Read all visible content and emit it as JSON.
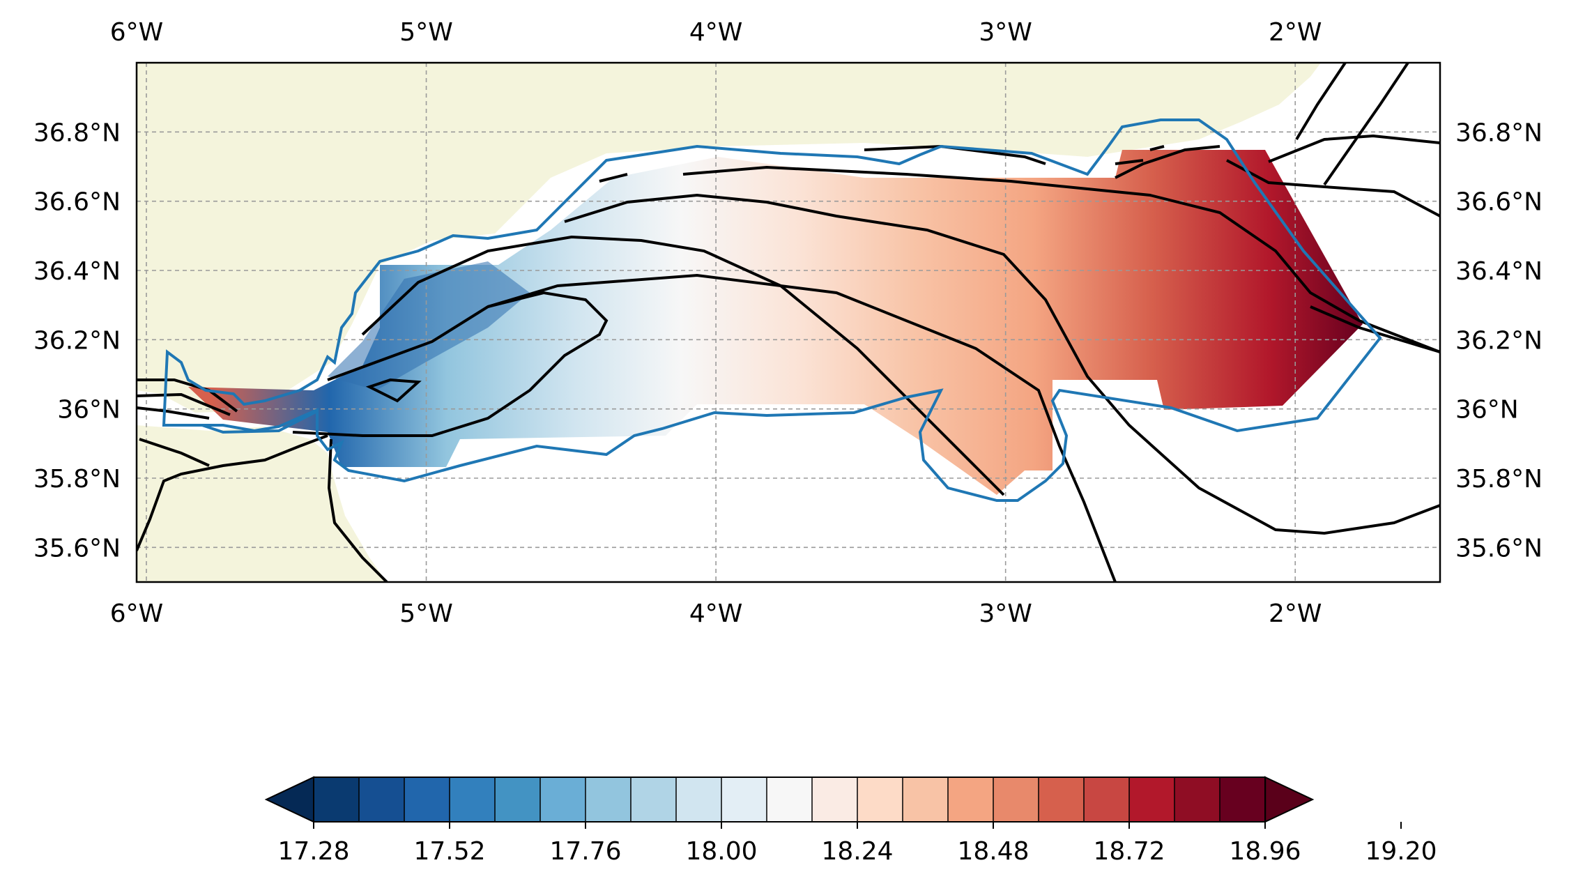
{
  "map": {
    "lon_labels_top": [
      "6°W",
      "5°W",
      "4°W",
      "3°W",
      "2°W"
    ],
    "lon_labels_bottom": [
      "6°W",
      "5°W",
      "4°W",
      "3°W",
      "2°W"
    ],
    "lat_labels_left": [
      "36.8°N",
      "36.6°N",
      "36.4°N",
      "36.2°N",
      "36°N",
      "35.8°N",
      "35.6°N"
    ],
    "lat_labels_right": [
      "36.8°N",
      "36.6°N",
      "36.4°N",
      "36.2°N",
      "36°N",
      "35.8°N",
      "35.6°N"
    ],
    "extent": {
      "lon_min": -6.0,
      "lon_max": -1.5,
      "lat_min": 35.5,
      "lat_max": 37.0
    },
    "land_color": "#f4f4dc",
    "outline_color": "#1f77b4",
    "contour_color": "#000000",
    "grid": true
  },
  "colorbar": {
    "tick_labels": [
      "17.28",
      "17.52",
      "17.76",
      "18.00",
      "18.24",
      "18.48",
      "18.72",
      "18.96",
      "19.20"
    ],
    "levels_min": 17.28,
    "levels_step": 0.08,
    "colors": [
      "#0a3a70",
      "#154f92",
      "#2166ac",
      "#3280bd",
      "#4393c3",
      "#6aaed6",
      "#92c5de",
      "#b0d4e6",
      "#d1e5f0",
      "#e3eef5",
      "#f7f7f7",
      "#faebe4",
      "#fddbc7",
      "#f8c3a6",
      "#f4a582",
      "#e8896b",
      "#d6604d",
      "#c84742",
      "#b2182b",
      "#8f0d24",
      "#67001f"
    ],
    "extend_low_color": "#052955",
    "extend_high_color": "#5a001a"
  }
}
